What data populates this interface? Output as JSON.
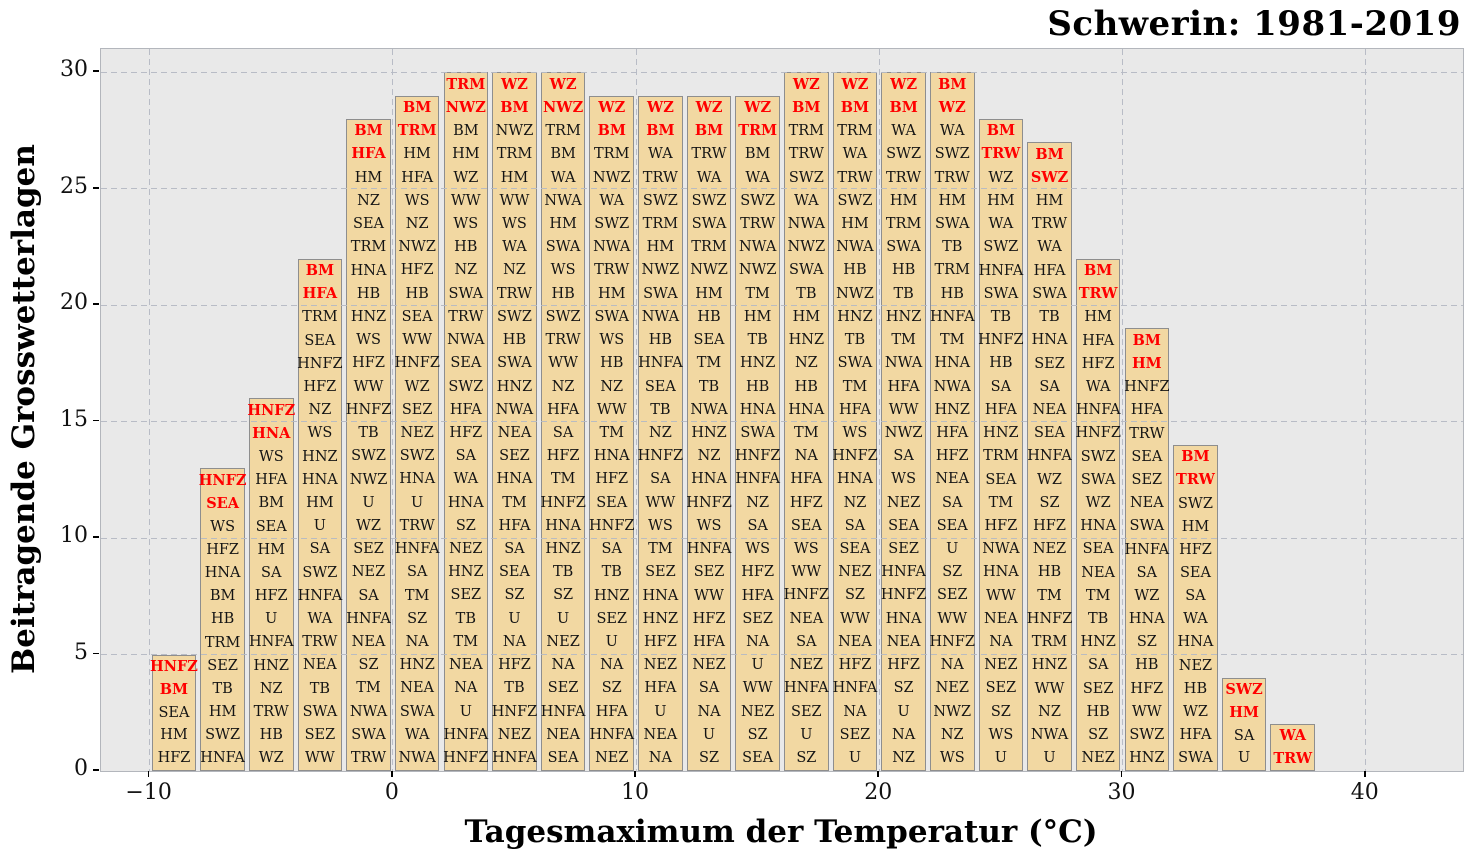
{
  "chart_data": {
    "type": "bar",
    "subtype": "stacked-text-histogram",
    "title": "Schwerin: 1981-2019",
    "xlabel": "Tagesmaximum der Temperatur (°C)",
    "ylabel": "Beitragende Grosswetterlagen",
    "xlim": [
      -12,
      44
    ],
    "ylim": [
      0,
      31
    ],
    "xticks": [
      -10,
      0,
      10,
      20,
      30,
      40
    ],
    "yticks": [
      0,
      5,
      10,
      15,
      20,
      25,
      30
    ],
    "grid": "dashed-on",
    "bin_width_deg_c": 2,
    "red_top_labels_per_bar": 2,
    "colors": {
      "bar_fill": "#f2d8a2",
      "bar_edge": "#8e8e8e",
      "plot_background": "#e9e9e9",
      "red_label": "#ff0000",
      "black_label": "#141414"
    },
    "bars": [
      {
        "temp_start": -10,
        "temp_end": -8,
        "count": 5,
        "labels_top_to_bottom": [
          "HNFZ",
          "BM",
          "SEA",
          "HM",
          "HFZ"
        ]
      },
      {
        "temp_start": -8,
        "temp_end": -6,
        "count": 13,
        "labels_top_to_bottom": [
          "HNFZ",
          "SEA",
          "WS",
          "HFZ",
          "HNA",
          "BM",
          "HB",
          "TRM",
          "SEZ",
          "TB",
          "HM",
          "SWZ",
          "HNFA"
        ]
      },
      {
        "temp_start": -6,
        "temp_end": -4,
        "count": 16,
        "labels_top_to_bottom": [
          "HNFZ",
          "HNA",
          "WS",
          "HFA",
          "BM",
          "SEA",
          "HM",
          "SA",
          "HFZ",
          "U",
          "HNFA",
          "HNZ",
          "NZ",
          "TRW",
          "HB",
          "WZ"
        ]
      },
      {
        "temp_start": -4,
        "temp_end": -2,
        "count": 22,
        "labels_top_to_bottom": [
          "BM",
          "HFA",
          "TRM",
          "SEA",
          "HNFZ",
          "HFZ",
          "NZ",
          "WS",
          "HNZ",
          "HNA",
          "HM",
          "U",
          "SA",
          "SWZ",
          "HNFA",
          "WA",
          "TRW",
          "NEA",
          "TB",
          "SWA",
          "SEZ",
          "WW"
        ]
      },
      {
        "temp_start": -2,
        "temp_end": 0,
        "count": 28,
        "labels_top_to_bottom": [
          "BM",
          "HFA",
          "HM",
          "NZ",
          "SEA",
          "TRM",
          "HNA",
          "HB",
          "HNZ",
          "WS",
          "HFZ",
          "WW",
          "HNFZ",
          "TB",
          "SWZ",
          "NWZ",
          "U",
          "WZ",
          "SEZ",
          "NEZ",
          "SA",
          "HNFA",
          "NEA",
          "SZ",
          "TM",
          "NWA",
          "SWA",
          "TRW"
        ]
      },
      {
        "temp_start": 0,
        "temp_end": 2,
        "count": 29,
        "labels_top_to_bottom": [
          "BM",
          "TRM",
          "HM",
          "HFA",
          "WS",
          "NZ",
          "NWZ",
          "HFZ",
          "HB",
          "SEA",
          "WW",
          "HNFZ",
          "WZ",
          "SEZ",
          "NEZ",
          "SWZ",
          "HNA",
          "U",
          "TRW",
          "HNFA",
          "SA",
          "TM",
          "SZ",
          "NA",
          "HNZ",
          "NEA",
          "SWA",
          "WA",
          "NWA"
        ]
      },
      {
        "temp_start": 2,
        "temp_end": 4,
        "count": 30,
        "labels_top_to_bottom": [
          "TRM",
          "NWZ",
          "BM",
          "HM",
          "WZ",
          "WW",
          "WS",
          "HB",
          "NZ",
          "SWA",
          "TRW",
          "NWA",
          "SEA",
          "SWZ",
          "HFA",
          "HFZ",
          "SA",
          "WA",
          "HNA",
          "SZ",
          "NEZ",
          "HNZ",
          "SEZ",
          "TB",
          "TM",
          "NEA",
          "NA",
          "U",
          "HNFA",
          "HNFZ"
        ]
      },
      {
        "temp_start": 4,
        "temp_end": 6,
        "count": 30,
        "labels_top_to_bottom": [
          "WZ",
          "BM",
          "NWZ",
          "TRM",
          "HM",
          "WW",
          "WS",
          "WA",
          "NZ",
          "TRW",
          "SWZ",
          "HB",
          "SWA",
          "HNZ",
          "NWA",
          "NEA",
          "SEZ",
          "HNA",
          "TM",
          "HFA",
          "SA",
          "SEA",
          "SZ",
          "U",
          "NA",
          "HFZ",
          "TB",
          "HNFZ",
          "NEZ",
          "HNFA"
        ]
      },
      {
        "temp_start": 6,
        "temp_end": 8,
        "count": 30,
        "labels_top_to_bottom": [
          "WZ",
          "NWZ",
          "TRM",
          "BM",
          "WA",
          "NWA",
          "HM",
          "SWA",
          "WS",
          "HB",
          "SWZ",
          "TRW",
          "WW",
          "NZ",
          "HFA",
          "SA",
          "HFZ",
          "TM",
          "HNFZ",
          "HNA",
          "HNZ",
          "TB",
          "SZ",
          "U",
          "NEZ",
          "NA",
          "SEZ",
          "HNFA",
          "NEA",
          "SEA"
        ]
      },
      {
        "temp_start": 8,
        "temp_end": 10,
        "count": 29,
        "labels_top_to_bottom": [
          "WZ",
          "BM",
          "TRM",
          "NWZ",
          "WA",
          "SWZ",
          "NWA",
          "TRW",
          "HM",
          "SWA",
          "WS",
          "HB",
          "NZ",
          "WW",
          "TM",
          "HNA",
          "HFZ",
          "SEA",
          "HNFZ",
          "SA",
          "TB",
          "HNZ",
          "SEZ",
          "U",
          "NA",
          "SZ",
          "HFA",
          "HNFA",
          "NEZ"
        ]
      },
      {
        "temp_start": 10,
        "temp_end": 12,
        "count": 29,
        "labels_top_to_bottom": [
          "WZ",
          "BM",
          "WA",
          "TRW",
          "SWZ",
          "TRM",
          "HM",
          "NWZ",
          "SWA",
          "NWA",
          "HB",
          "HNFA",
          "SEA",
          "TB",
          "NZ",
          "HNFZ",
          "SA",
          "WW",
          "WS",
          "TM",
          "SEZ",
          "HNA",
          "HNZ",
          "HFZ",
          "NEZ",
          "HFA",
          "U",
          "NEA",
          "NA"
        ]
      },
      {
        "temp_start": 12,
        "temp_end": 14,
        "count": 29,
        "labels_top_to_bottom": [
          "WZ",
          "BM",
          "TRW",
          "WA",
          "SWZ",
          "SWA",
          "TRM",
          "NWZ",
          "HM",
          "HB",
          "SEA",
          "TM",
          "TB",
          "NWA",
          "HNZ",
          "NZ",
          "HNA",
          "HNFZ",
          "WS",
          "HNFA",
          "SEZ",
          "WW",
          "HFZ",
          "HFA",
          "NEZ",
          "SA",
          "NA",
          "U",
          "SZ"
        ]
      },
      {
        "temp_start": 14,
        "temp_end": 16,
        "count": 29,
        "labels_top_to_bottom": [
          "WZ",
          "TRM",
          "BM",
          "WA",
          "SWZ",
          "TRW",
          "NWA",
          "NWZ",
          "TM",
          "HM",
          "TB",
          "HNZ",
          "HB",
          "HNA",
          "SWA",
          "HNFZ",
          "HNFA",
          "NZ",
          "SA",
          "WS",
          "HFZ",
          "HFA",
          "SEZ",
          "NA",
          "U",
          "WW",
          "NEZ",
          "SZ",
          "SEA"
        ]
      },
      {
        "temp_start": 16,
        "temp_end": 18,
        "count": 30,
        "labels_top_to_bottom": [
          "WZ",
          "BM",
          "TRM",
          "TRW",
          "SWZ",
          "WA",
          "NWA",
          "NWZ",
          "SWA",
          "TB",
          "HM",
          "HNZ",
          "NZ",
          "HB",
          "HNA",
          "TM",
          "NA",
          "HFA",
          "HFZ",
          "SEA",
          "WS",
          "WW",
          "HNFZ",
          "NEA",
          "SA",
          "NEZ",
          "HNFA",
          "SEZ",
          "U",
          "SZ"
        ]
      },
      {
        "temp_start": 18,
        "temp_end": 20,
        "count": 30,
        "labels_top_to_bottom": [
          "WZ",
          "BM",
          "TRM",
          "WA",
          "TRW",
          "SWZ",
          "HM",
          "NWA",
          "HB",
          "NWZ",
          "HNZ",
          "TB",
          "SWA",
          "TM",
          "HFA",
          "WS",
          "HNFZ",
          "HNA",
          "NZ",
          "SA",
          "SEA",
          "NEZ",
          "SZ",
          "WW",
          "NEA",
          "HFZ",
          "HNFA",
          "NA",
          "SEZ",
          "U"
        ]
      },
      {
        "temp_start": 20,
        "temp_end": 22,
        "count": 30,
        "labels_top_to_bottom": [
          "WZ",
          "BM",
          "WA",
          "SWZ",
          "TRW",
          "HM",
          "TRM",
          "SWA",
          "HB",
          "TB",
          "HNZ",
          "TM",
          "NWA",
          "HFA",
          "WW",
          "NWZ",
          "SA",
          "WS",
          "NEZ",
          "SEA",
          "SEZ",
          "HNFA",
          "HNFZ",
          "HNA",
          "NEA",
          "HFZ",
          "SZ",
          "U",
          "NA",
          "NZ"
        ]
      },
      {
        "temp_start": 22,
        "temp_end": 24,
        "count": 30,
        "labels_top_to_bottom": [
          "BM",
          "WZ",
          "WA",
          "SWZ",
          "TRW",
          "HM",
          "SWA",
          "TB",
          "TRM",
          "HB",
          "HNFA",
          "TM",
          "HNA",
          "NWA",
          "HNZ",
          "HFA",
          "HFZ",
          "NEA",
          "SA",
          "SEA",
          "U",
          "SZ",
          "SEZ",
          "WW",
          "HNFZ",
          "NA",
          "NEZ",
          "NWZ",
          "NZ",
          "WS"
        ]
      },
      {
        "temp_start": 24,
        "temp_end": 26,
        "count": 28,
        "labels_top_to_bottom": [
          "BM",
          "TRW",
          "WZ",
          "HM",
          "WA",
          "SWZ",
          "HNFA",
          "SWA",
          "TB",
          "HNFZ",
          "HB",
          "SA",
          "HFA",
          "HNZ",
          "TRM",
          "SEA",
          "TM",
          "HFZ",
          "NWA",
          "HNA",
          "WW",
          "NEA",
          "NA",
          "NEZ",
          "SEZ",
          "SZ",
          "WS",
          "U"
        ]
      },
      {
        "temp_start": 26,
        "temp_end": 28,
        "count": 27,
        "labels_top_to_bottom": [
          "BM",
          "SWZ",
          "HM",
          "TRW",
          "WA",
          "HFA",
          "SWA",
          "TB",
          "HNA",
          "SEZ",
          "SA",
          "NEA",
          "SEA",
          "HNFA",
          "WZ",
          "SZ",
          "HFZ",
          "NEZ",
          "HB",
          "TM",
          "HNFZ",
          "TRM",
          "HNZ",
          "WW",
          "NZ",
          "NWA",
          "U"
        ]
      },
      {
        "temp_start": 28,
        "temp_end": 30,
        "count": 22,
        "labels_top_to_bottom": [
          "BM",
          "TRW",
          "HM",
          "HFA",
          "HFZ",
          "WA",
          "HNFA",
          "HNFZ",
          "SWZ",
          "SWA",
          "WZ",
          "HNA",
          "SEA",
          "NEA",
          "TM",
          "TB",
          "HNZ",
          "SA",
          "SEZ",
          "HB",
          "SZ",
          "NEZ"
        ]
      },
      {
        "temp_start": 30,
        "temp_end": 32,
        "count": 19,
        "labels_top_to_bottom": [
          "BM",
          "HM",
          "HNFZ",
          "HFA",
          "TRW",
          "SEA",
          "SEZ",
          "NEA",
          "SWA",
          "HNFA",
          "SA",
          "WZ",
          "HNA",
          "SZ",
          "HB",
          "HFZ",
          "WW",
          "SWZ",
          "HNZ"
        ]
      },
      {
        "temp_start": 32,
        "temp_end": 34,
        "count": 14,
        "labels_top_to_bottom": [
          "BM",
          "TRW",
          "SWZ",
          "HM",
          "HFZ",
          "SEA",
          "SA",
          "WA",
          "HNA",
          "NEZ",
          "HB",
          "WZ",
          "HFA",
          "SWA"
        ]
      },
      {
        "temp_start": 34,
        "temp_end": 36,
        "count": 4,
        "labels_top_to_bottom": [
          "SWZ",
          "HM",
          "SA",
          "U"
        ]
      },
      {
        "temp_start": 36,
        "temp_end": 38,
        "count": 2,
        "labels_top_to_bottom": [
          "WA",
          "TRW"
        ]
      }
    ]
  }
}
